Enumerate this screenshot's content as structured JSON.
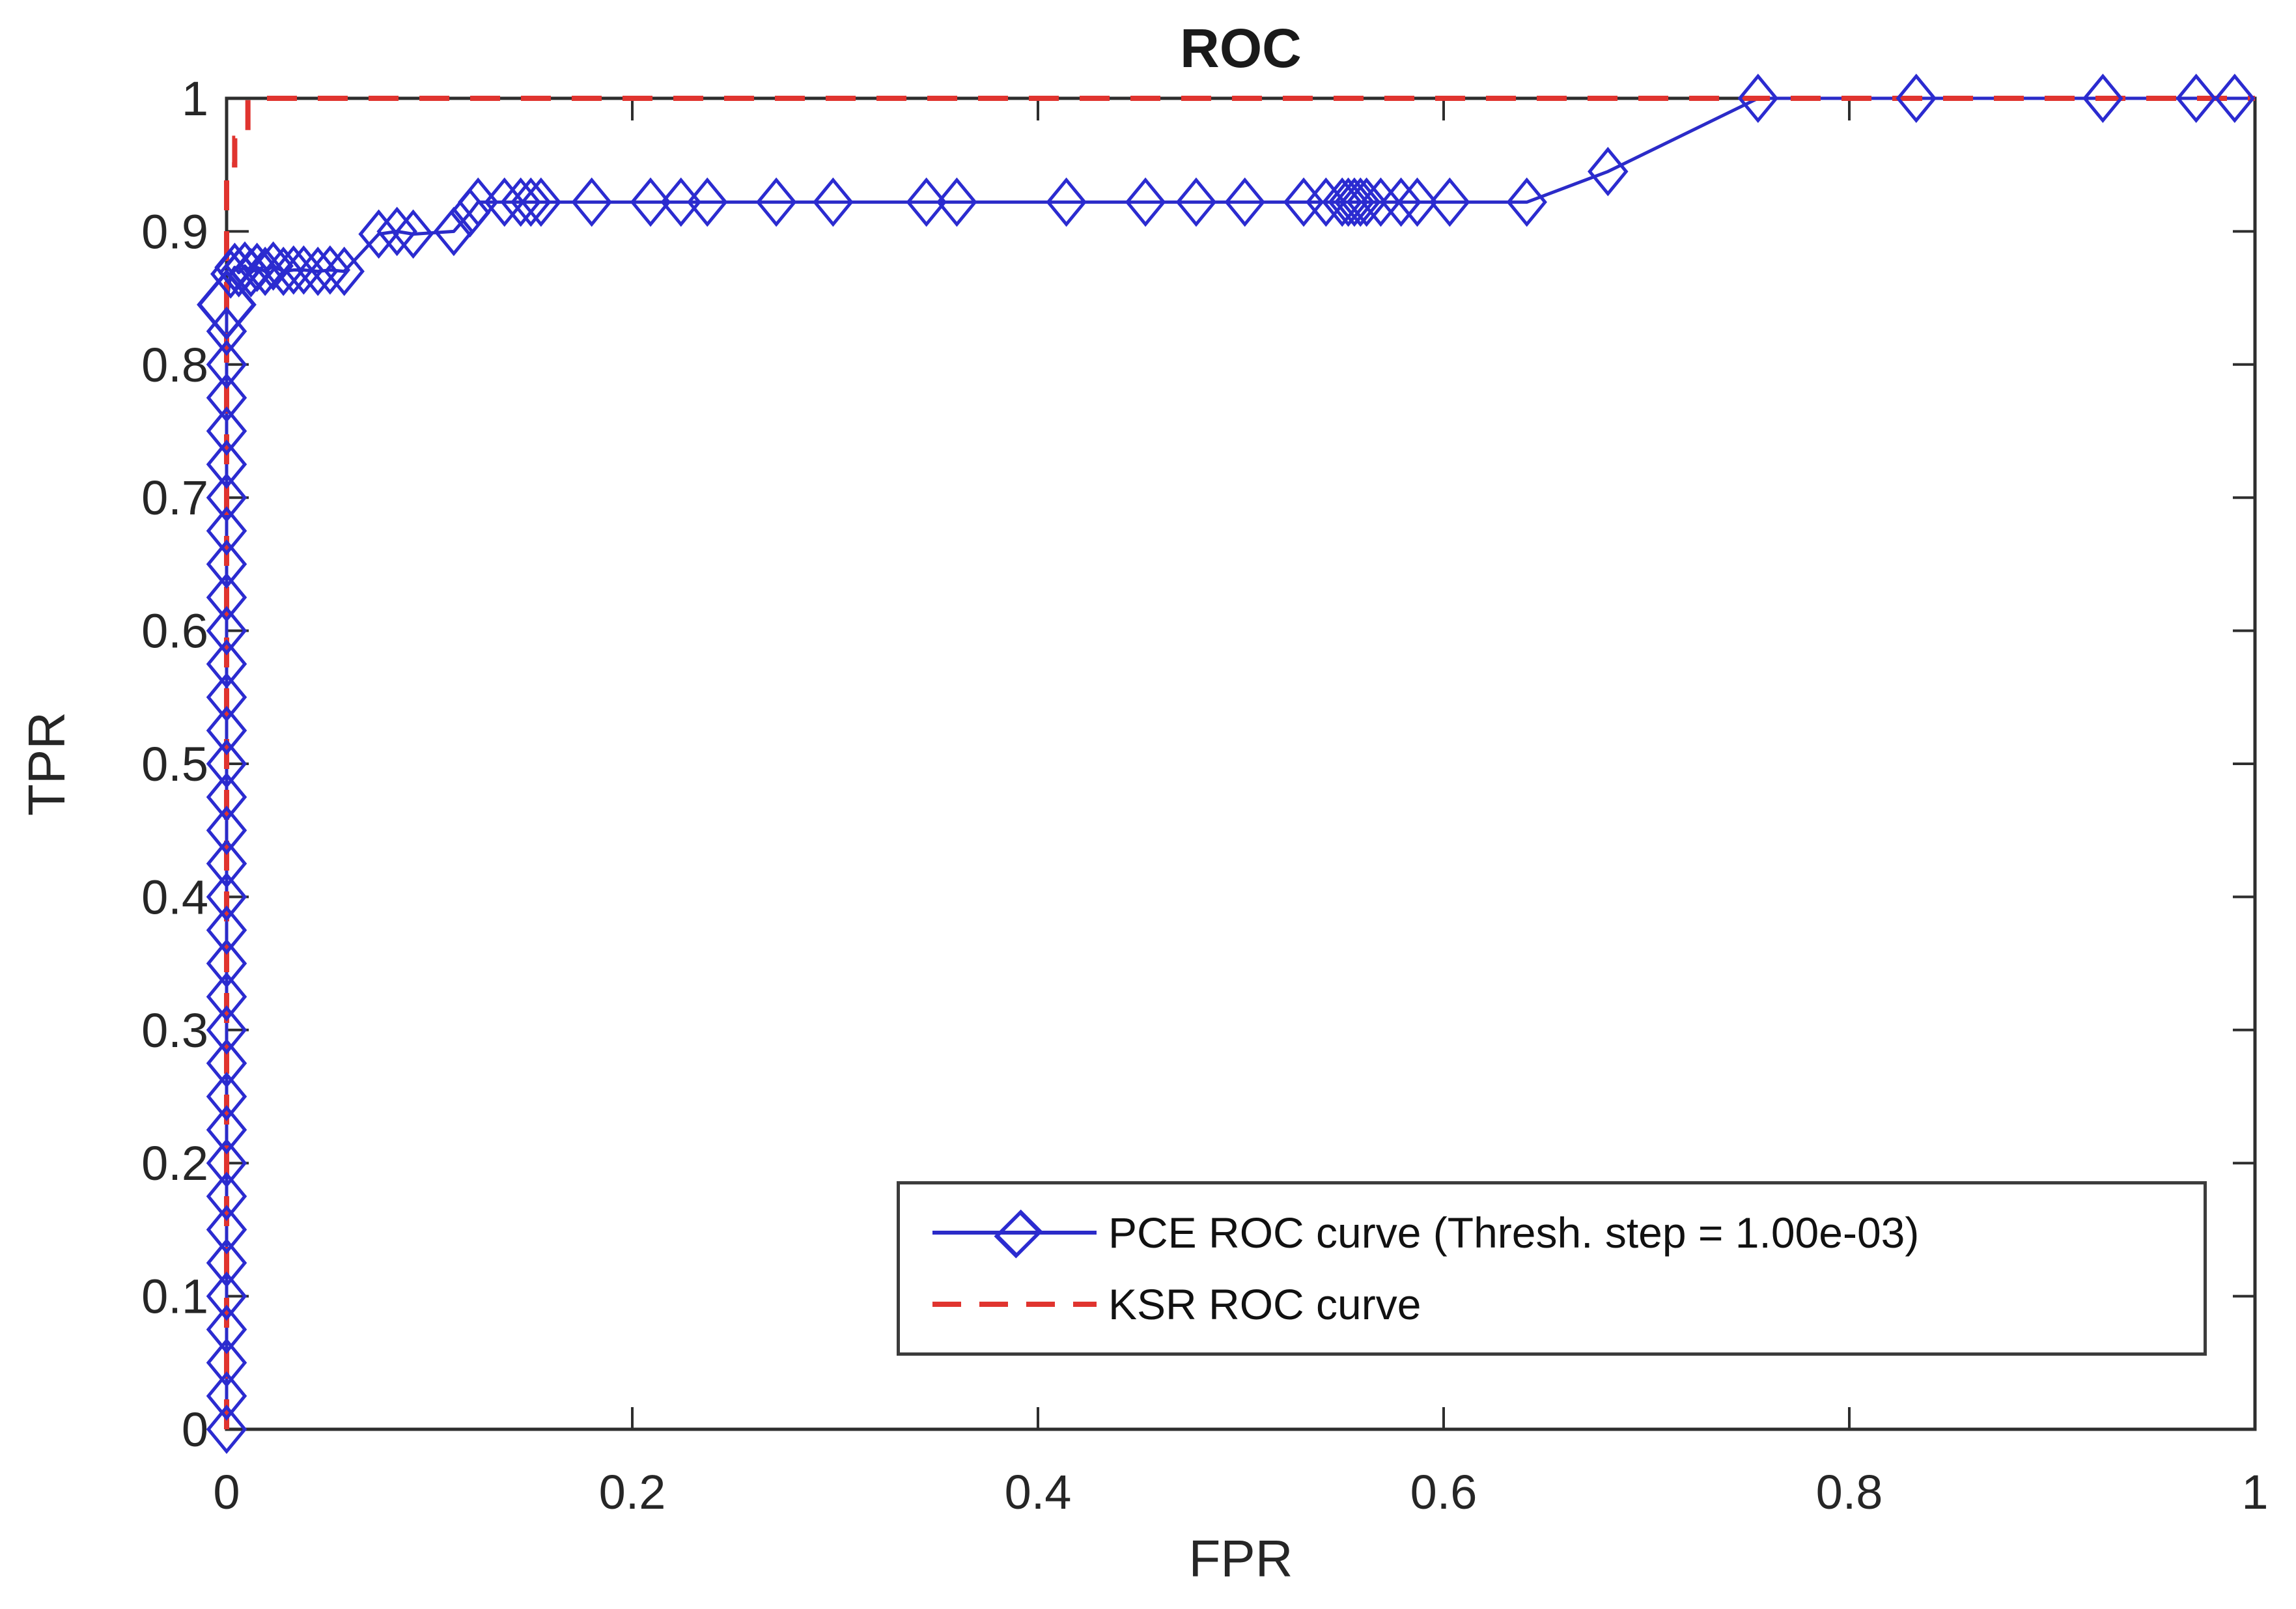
{
  "figure": {
    "title": "ROC",
    "x_label": "FPR",
    "y_label": "TPR"
  },
  "legend": {
    "items": [
      {
        "label": "PCE ROC curve (Thresh. step = 1.00e-03)",
        "color": "#2b2bd0",
        "style": "solid-line-diamond-marker"
      },
      {
        "label": "KSR ROC curve",
        "color": "#e0342f",
        "style": "dashed-line"
      }
    ]
  },
  "colors": {
    "pce_blue": "#2b2bc8",
    "ksr_red": "#e0342f",
    "axis": "#2e2e2e",
    "text": "#262626"
  },
  "chart_data": {
    "type": "line",
    "title": "ROC",
    "xlabel": "FPR",
    "ylabel": "TPR",
    "xlim": [
      0,
      1
    ],
    "ylim": [
      0,
      1
    ],
    "grid": false,
    "legend_position": "lower-right-inside",
    "x_ticks": [
      0,
      0.2,
      0.4,
      0.6,
      0.8,
      1
    ],
    "x_tick_labels": [
      "0",
      "0.2",
      "0.4",
      "0.6",
      "0.8",
      "1"
    ],
    "y_ticks": [
      0,
      0.1,
      0.2,
      0.3,
      0.4,
      0.5,
      0.6,
      0.7,
      0.8,
      0.9,
      1
    ],
    "y_tick_labels": [
      "0",
      "0.1",
      "0.2",
      "0.3",
      "0.4",
      "0.5",
      "0.6",
      "0.7",
      "0.8",
      "0.9",
      "1"
    ],
    "series": [
      {
        "name": "PCE ROC curve (Thresh. step = 1.00e-03)",
        "color": "#2b2bc8",
        "line": "solid",
        "marker": "diamond",
        "big_index": 34,
        "points": [
          [
            0,
            0
          ],
          [
            0,
            0.025
          ],
          [
            0,
            0.05
          ],
          [
            0,
            0.075
          ],
          [
            0,
            0.1
          ],
          [
            0,
            0.125
          ],
          [
            0,
            0.15
          ],
          [
            0,
            0.175
          ],
          [
            0,
            0.2
          ],
          [
            0,
            0.225
          ],
          [
            0,
            0.25
          ],
          [
            0,
            0.275
          ],
          [
            0,
            0.3
          ],
          [
            0,
            0.325
          ],
          [
            0,
            0.35
          ],
          [
            0,
            0.375
          ],
          [
            0,
            0.4
          ],
          [
            0,
            0.425
          ],
          [
            0,
            0.45
          ],
          [
            0,
            0.475
          ],
          [
            0,
            0.5
          ],
          [
            0,
            0.525
          ],
          [
            0,
            0.55
          ],
          [
            0,
            0.575
          ],
          [
            0,
            0.6
          ],
          [
            0,
            0.625
          ],
          [
            0,
            0.65
          ],
          [
            0,
            0.675
          ],
          [
            0,
            0.7
          ],
          [
            0,
            0.725
          ],
          [
            0,
            0.75
          ],
          [
            0,
            0.775
          ],
          [
            0,
            0.8
          ],
          [
            0,
            0.825
          ],
          [
            0,
            0.845
          ],
          [
            0.002,
            0.868
          ],
          [
            0.004,
            0.873
          ],
          [
            0.006,
            0.869
          ],
          [
            0.009,
            0.874
          ],
          [
            0.012,
            0.869
          ],
          [
            0.015,
            0.873
          ],
          [
            0.019,
            0.87
          ],
          [
            0.023,
            0.874
          ],
          [
            0.028,
            0.87
          ],
          [
            0.033,
            0.871
          ],
          [
            0.038,
            0.871
          ],
          [
            0.045,
            0.87
          ],
          [
            0.051,
            0.871
          ],
          [
            0.058,
            0.87
          ],
          [
            0.075,
            0.898
          ],
          [
            0.084,
            0.9
          ],
          [
            0.092,
            0.898
          ],
          [
            0.112,
            0.9
          ],
          [
            0.12,
            0.914
          ],
          [
            0.124,
            0.922
          ],
          [
            0.137,
            0.922
          ],
          [
            0.145,
            0.922
          ],
          [
            0.15,
            0.922
          ],
          [
            0.155,
            0.922
          ],
          [
            0.18,
            0.922
          ],
          [
            0.209,
            0.922
          ],
          [
            0.224,
            0.922
          ],
          [
            0.237,
            0.922
          ],
          [
            0.271,
            0.922
          ],
          [
            0.299,
            0.922
          ],
          [
            0.345,
            0.922
          ],
          [
            0.36,
            0.922
          ],
          [
            0.414,
            0.922
          ],
          [
            0.453,
            0.922
          ],
          [
            0.478,
            0.922
          ],
          [
            0.502,
            0.922
          ],
          [
            0.531,
            0.922
          ],
          [
            0.542,
            0.922
          ],
          [
            0.55,
            0.922
          ],
          [
            0.553,
            0.922
          ],
          [
            0.556,
            0.922
          ],
          [
            0.559,
            0.922
          ],
          [
            0.562,
            0.922
          ],
          [
            0.569,
            0.922
          ],
          [
            0.579,
            0.922
          ],
          [
            0.587,
            0.922
          ],
          [
            0.603,
            0.922
          ],
          [
            0.641,
            0.922
          ],
          [
            0.681,
            0.945
          ],
          [
            0.755,
            1
          ],
          [
            0.833,
            1
          ],
          [
            0.925,
            1
          ],
          [
            0.971,
            1
          ],
          [
            0.99,
            1
          ]
        ],
        "tail": [
          [
            1,
            1
          ]
        ]
      },
      {
        "name": "KSR ROC curve",
        "color": "#e0342f",
        "line": "dashed",
        "marker": "none",
        "points": [
          [
            0,
            0
          ],
          [
            0,
            0.95
          ],
          [
            0.004,
            0.95
          ],
          [
            0.004,
            0.97
          ],
          [
            0.0105,
            0.97
          ],
          [
            0.0105,
            1
          ],
          [
            1,
            1
          ]
        ],
        "tail": []
      }
    ]
  }
}
